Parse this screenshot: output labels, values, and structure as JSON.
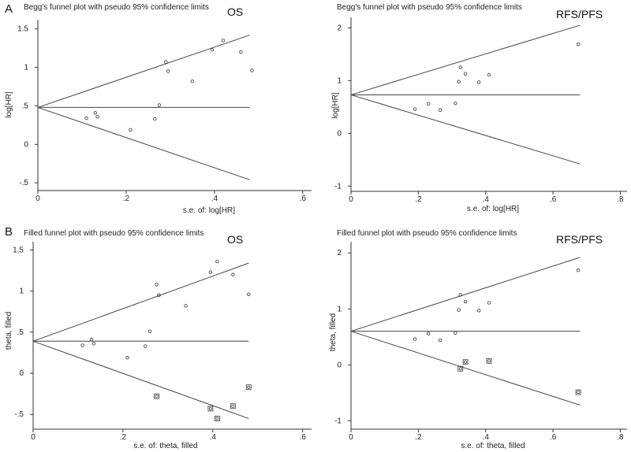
{
  "panel_labels": {
    "A": "A",
    "B": "B"
  },
  "chart_data": [
    {
      "type": "scatter",
      "panel": "A",
      "title": "Begg's funnel plot with pseudo 95% confidence limits",
      "corner_label": "OS",
      "xlabel": "s.e. of: log[HR]",
      "ylabel": "log[HR]",
      "xlim": [
        0,
        0.62
      ],
      "ylim": [
        -0.6,
        1.62
      ],
      "xticks": [
        {
          "v": 0,
          "label": "0"
        },
        {
          "v": 0.2,
          "label": ".2"
        },
        {
          "v": 0.4,
          "label": ".4"
        },
        {
          "v": 0.6,
          "label": ".6"
        }
      ],
      "yticks": [
        {
          "v": -0.5,
          "label": "-.5"
        },
        {
          "v": 0,
          "label": "0"
        },
        {
          "v": 0.5,
          "label": ".5"
        },
        {
          "v": 1,
          "label": "1"
        },
        {
          "v": 1.5,
          "label": "1.5"
        }
      ],
      "pooled": 0.48,
      "funnel_xmax": 0.48,
      "funnel_upper_end": 1.42,
      "funnel_lower_end": -0.46,
      "points": [
        [
          0.11,
          0.34
        ],
        [
          0.13,
          0.41
        ],
        [
          0.135,
          0.36
        ],
        [
          0.21,
          0.19
        ],
        [
          0.265,
          0.33
        ],
        [
          0.275,
          0.51
        ],
        [
          0.29,
          1.07
        ],
        [
          0.295,
          0.95
        ],
        [
          0.35,
          0.82
        ],
        [
          0.395,
          1.23
        ],
        [
          0.42,
          1.35
        ],
        [
          0.46,
          1.2
        ],
        [
          0.485,
          0.96
        ]
      ],
      "filled_points": []
    },
    {
      "type": "scatter",
      "panel": "A",
      "title": "Begg's funnel plot with pseudo 95% confidence limits",
      "corner_label": "RFS/PFS",
      "xlabel": "s.e. of: log[HR]",
      "ylabel": "log[HR]",
      "xlim": [
        0,
        0.82
      ],
      "ylim": [
        -1.1,
        2.2
      ],
      "xticks": [
        {
          "v": 0,
          "label": "0"
        },
        {
          "v": 0.2,
          "label": ".2"
        },
        {
          "v": 0.4,
          "label": ".4"
        },
        {
          "v": 0.6,
          "label": ".6"
        },
        {
          "v": 0.8,
          "label": ".8"
        }
      ],
      "yticks": [
        {
          "v": -1,
          "label": "-1"
        },
        {
          "v": 0,
          "label": "0"
        },
        {
          "v": 1,
          "label": "1"
        },
        {
          "v": 2,
          "label": "2"
        }
      ],
      "pooled": 0.73,
      "funnel_xmax": 0.68,
      "funnel_upper_end": 2.05,
      "funnel_lower_end": -0.58,
      "points": [
        [
          0.19,
          0.46
        ],
        [
          0.23,
          0.56
        ],
        [
          0.265,
          0.44
        ],
        [
          0.31,
          0.57
        ],
        [
          0.32,
          0.98
        ],
        [
          0.325,
          1.25
        ],
        [
          0.34,
          1.13
        ],
        [
          0.38,
          0.97
        ],
        [
          0.41,
          1.11
        ],
        [
          0.675,
          1.69
        ]
      ],
      "filled_points": []
    },
    {
      "type": "scatter",
      "panel": "B",
      "title": "Filled funnel plot with pseudo 95% confidence limits",
      "corner_label": "OS",
      "xlabel": "s.e. of: theta, filled",
      "ylabel": "theta, filled",
      "xlim": [
        0,
        0.62
      ],
      "ylim": [
        -0.68,
        1.6
      ],
      "xticks": [
        {
          "v": 0,
          "label": "0"
        },
        {
          "v": 0.2,
          "label": ".2"
        },
        {
          "v": 0.4,
          "label": ".4"
        },
        {
          "v": 0.6,
          "label": ".6"
        }
      ],
      "yticks": [
        {
          "v": -0.5,
          "label": "-.5"
        },
        {
          "v": 0,
          "label": "0"
        },
        {
          "v": 0.5,
          "label": ".5"
        },
        {
          "v": 1,
          "label": "1"
        },
        {
          "v": 1.5,
          "label": "1.5"
        }
      ],
      "pooled": 0.39,
      "funnel_xmax": 0.48,
      "funnel_upper_end": 1.34,
      "funnel_lower_end": -0.55,
      "points": [
        [
          0.11,
          0.34
        ],
        [
          0.13,
          0.41
        ],
        [
          0.135,
          0.36
        ],
        [
          0.21,
          0.19
        ],
        [
          0.25,
          0.33
        ],
        [
          0.26,
          0.51
        ],
        [
          0.275,
          1.08
        ],
        [
          0.28,
          0.95
        ],
        [
          0.34,
          0.82
        ],
        [
          0.395,
          1.23
        ],
        [
          0.41,
          1.36
        ],
        [
          0.445,
          1.2
        ],
        [
          0.48,
          0.96
        ]
      ],
      "filled_points": [
        [
          0.275,
          -0.28
        ],
        [
          0.395,
          -0.43
        ],
        [
          0.41,
          -0.55
        ],
        [
          0.445,
          -0.4
        ],
        [
          0.48,
          -0.17
        ]
      ]
    },
    {
      "type": "scatter",
      "panel": "B",
      "title": "Filled funnel plot with pseudo 95% confidence limits",
      "corner_label": "RFS/PFS",
      "xlabel": "s.e. of: theta, filled",
      "ylabel": "theta, filled",
      "xlim": [
        0,
        0.82
      ],
      "ylim": [
        -1.15,
        2.2
      ],
      "xticks": [
        {
          "v": 0,
          "label": "0"
        },
        {
          "v": 0.2,
          "label": ".2"
        },
        {
          "v": 0.4,
          "label": ".4"
        },
        {
          "v": 0.6,
          "label": ".6"
        },
        {
          "v": 0.8,
          "label": ".8"
        }
      ],
      "yticks": [
        {
          "v": -1,
          "label": "-1"
        },
        {
          "v": 0,
          "label": "0"
        },
        {
          "v": 1,
          "label": "1"
        },
        {
          "v": 2,
          "label": "2"
        }
      ],
      "pooled": 0.6,
      "funnel_xmax": 0.68,
      "funnel_upper_end": 1.92,
      "funnel_lower_end": -0.72,
      "points": [
        [
          0.19,
          0.46
        ],
        [
          0.23,
          0.56
        ],
        [
          0.265,
          0.44
        ],
        [
          0.31,
          0.57
        ],
        [
          0.32,
          0.98
        ],
        [
          0.325,
          1.25
        ],
        [
          0.34,
          1.13
        ],
        [
          0.38,
          0.97
        ],
        [
          0.41,
          1.11
        ],
        [
          0.675,
          1.69
        ]
      ],
      "filled_points": [
        [
          0.325,
          -0.07
        ],
        [
          0.34,
          0.05
        ],
        [
          0.41,
          0.07
        ],
        [
          0.675,
          -0.49
        ]
      ]
    }
  ]
}
